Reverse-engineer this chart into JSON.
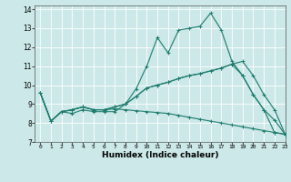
{
  "title": "",
  "xlabel": "Humidex (Indice chaleur)",
  "ylabel": "",
  "bg_color": "#cce8e8",
  "grid_color": "#ffffff",
  "line_color": "#1a7a6a",
  "xlim": [
    -0.5,
    23
  ],
  "ylim": [
    7,
    14.2
  ],
  "yticks": [
    7,
    8,
    9,
    10,
    11,
    12,
    13,
    14
  ],
  "xticks": [
    0,
    1,
    2,
    3,
    4,
    5,
    6,
    7,
    8,
    9,
    10,
    11,
    12,
    13,
    14,
    15,
    16,
    17,
    18,
    19,
    20,
    21,
    22,
    23
  ],
  "lines": [
    {
      "x": [
        0,
        1,
        2,
        3,
        4,
        5,
        6,
        7,
        8,
        9,
        10,
        11,
        12,
        13,
        14,
        15,
        16,
        17,
        18,
        19,
        20,
        21,
        22,
        23
      ],
      "y": [
        9.6,
        8.1,
        8.6,
        8.5,
        8.7,
        8.6,
        8.6,
        8.6,
        9.0,
        9.8,
        11.0,
        12.5,
        11.7,
        12.9,
        13.0,
        13.1,
        13.8,
        12.9,
        11.25,
        10.5,
        9.5,
        8.7,
        7.5,
        7.4
      ]
    },
    {
      "x": [
        0,
        1,
        2,
        3,
        4,
        5,
        6,
        7,
        8,
        9,
        10,
        11,
        12,
        13,
        14,
        15,
        16,
        17,
        18,
        19,
        20,
        21,
        22,
        23
      ],
      "y": [
        9.6,
        8.1,
        8.6,
        8.7,
        8.85,
        8.7,
        8.7,
        8.85,
        9.0,
        9.4,
        9.85,
        10.0,
        10.15,
        10.35,
        10.5,
        10.6,
        10.75,
        10.9,
        11.1,
        11.25,
        10.5,
        9.5,
        8.7,
        7.4
      ]
    },
    {
      "x": [
        0,
        1,
        2,
        3,
        4,
        5,
        6,
        7,
        8,
        9,
        10,
        11,
        12,
        13,
        14,
        15,
        16,
        17,
        18,
        19,
        20,
        21,
        22,
        23
      ],
      "y": [
        9.6,
        8.1,
        8.6,
        8.7,
        8.85,
        8.7,
        8.7,
        8.85,
        9.0,
        9.4,
        9.85,
        10.0,
        10.15,
        10.35,
        10.5,
        10.6,
        10.75,
        10.9,
        11.1,
        10.5,
        9.5,
        8.7,
        8.15,
        7.4
      ]
    },
    {
      "x": [
        0,
        1,
        2,
        3,
        4,
        5,
        6,
        7,
        8,
        9,
        10,
        11,
        12,
        13,
        14,
        15,
        16,
        17,
        18,
        19,
        20,
        21,
        22,
        23
      ],
      "y": [
        9.6,
        8.1,
        8.6,
        8.7,
        8.85,
        8.7,
        8.7,
        8.75,
        8.7,
        8.65,
        8.6,
        8.55,
        8.5,
        8.4,
        8.3,
        8.2,
        8.1,
        8.0,
        7.9,
        7.8,
        7.7,
        7.6,
        7.5,
        7.4
      ]
    }
  ]
}
